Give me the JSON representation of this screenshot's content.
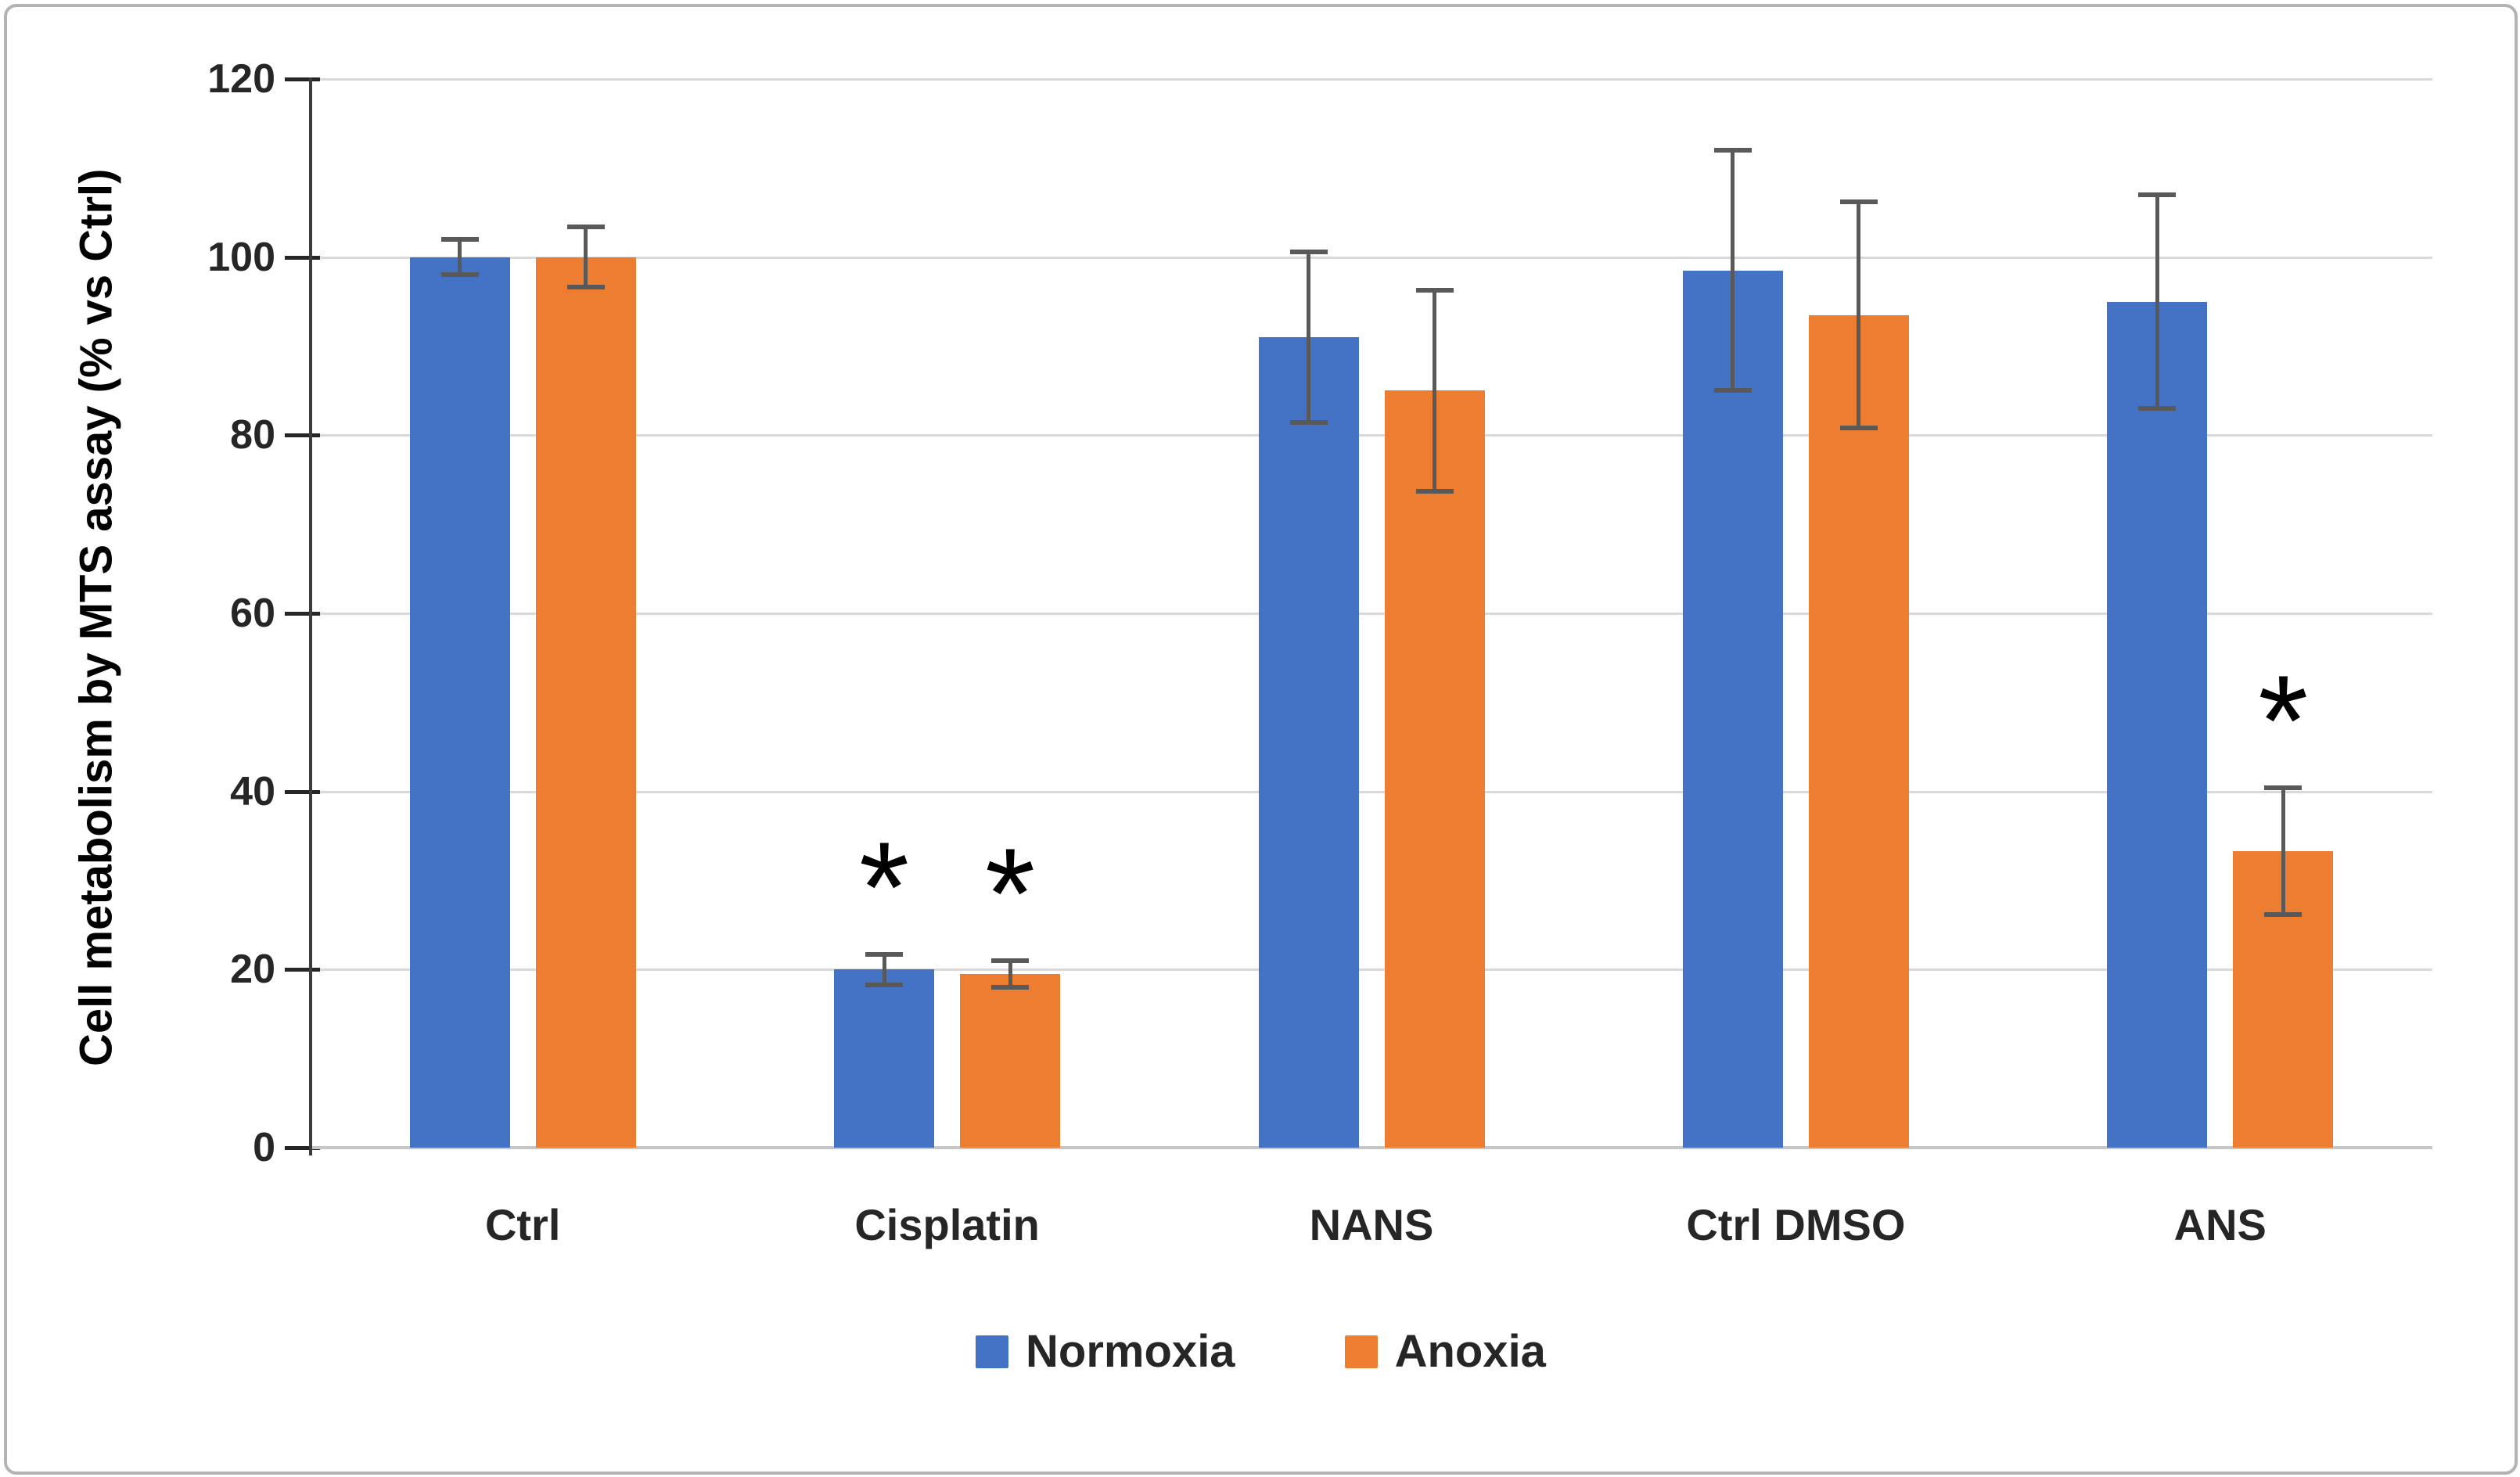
{
  "chart_data": {
    "type": "bar",
    "title": "",
    "categories": [
      "Ctrl",
      "Cisplatin",
      "NANS",
      "Ctrl DMSO",
      "ANS"
    ],
    "series": [
      {
        "name": "Normoxia",
        "color": "#4472C4",
        "values": [
          100,
          20,
          91,
          98.5,
          95
        ],
        "errors": [
          2,
          1.7,
          9.6,
          13.5,
          12
        ],
        "significant": [
          false,
          true,
          false,
          false,
          false
        ]
      },
      {
        "name": "Anoxia",
        "color": "#ED7D31",
        "values": [
          100,
          19.5,
          85,
          93.5,
          33.3
        ],
        "errors": [
          3.4,
          1.5,
          11.3,
          12.7,
          7.1
        ],
        "significant": [
          false,
          true,
          false,
          false,
          true
        ]
      }
    ],
    "xlabel": "",
    "ylabel": "Cell metabolism by MTS assay (% vs Ctrl)",
    "ylim": [
      0,
      120
    ],
    "ytick_step": 20,
    "ytick_labels": [
      "0",
      "20",
      "40",
      "60",
      "80",
      "100",
      "120"
    ],
    "grid": true,
    "legend_position": "bottom",
    "significance_marker": "*",
    "colors": {
      "gridline": "#D9D9D9",
      "baseline": "#C6C6C6",
      "axis_line": "#3B3B3B",
      "tick": "#262626",
      "text": "#262626",
      "error_bar": "#595959",
      "marker": "#000000"
    }
  }
}
